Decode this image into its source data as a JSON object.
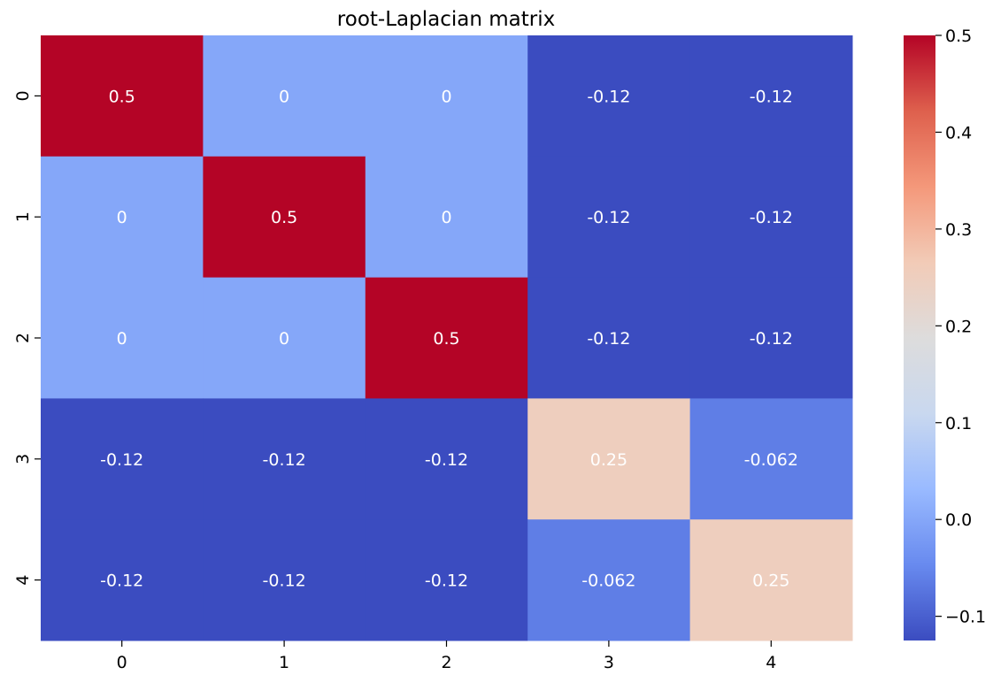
{
  "chart_data": {
    "type": "heatmap",
    "title": "root-Laplacian matrix",
    "xlabel": "",
    "ylabel": "",
    "x_categories": [
      "0",
      "1",
      "2",
      "3",
      "4"
    ],
    "y_categories": [
      "0",
      "1",
      "2",
      "3",
      "4"
    ],
    "values": [
      [
        0.5,
        0,
        0,
        -0.125,
        -0.125
      ],
      [
        0,
        0.5,
        0,
        -0.125,
        -0.125
      ],
      [
        0,
        0,
        0.5,
        -0.125,
        -0.125
      ],
      [
        -0.125,
        -0.125,
        -0.125,
        0.25,
        -0.0625
      ],
      [
        -0.125,
        -0.125,
        -0.125,
        -0.0625,
        0.25
      ]
    ],
    "annotations": [
      [
        "0.5",
        "0",
        "0",
        "-0.12",
        "-0.12"
      ],
      [
        "0",
        "0.5",
        "0",
        "-0.12",
        "-0.12"
      ],
      [
        "0",
        "0",
        "0.5",
        "-0.12",
        "-0.12"
      ],
      [
        "-0.12",
        "-0.12",
        "-0.12",
        "0.25",
        "-0.062"
      ],
      [
        "-0.12",
        "-0.12",
        "-0.12",
        "-0.062",
        "0.25"
      ]
    ],
    "colormap": "coolwarm",
    "colorbar": {
      "range": [
        -0.125,
        0.5
      ],
      "ticks": [
        -0.1,
        0.0,
        0.1,
        0.2,
        0.3,
        0.4,
        0.5
      ],
      "tick_labels": [
        "−0.1",
        "0.0",
        "0.1",
        "0.2",
        "0.3",
        "0.4",
        "0.5"
      ]
    },
    "colormap_stops": [
      "#3b4cc0",
      "#688aef",
      "#99baff",
      "#c9d8ef",
      "#dddcdc",
      "#f2cbb7",
      "#f4987a",
      "#de604d",
      "#b40426"
    ]
  }
}
